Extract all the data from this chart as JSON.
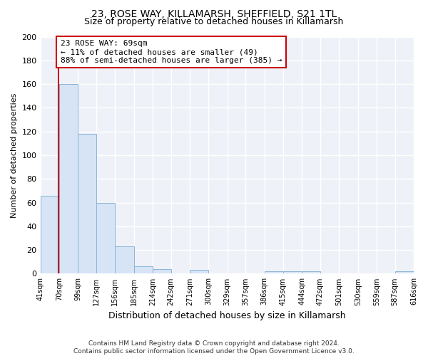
{
  "title": "23, ROSE WAY, KILLAMARSH, SHEFFIELD, S21 1TL",
  "subtitle": "Size of property relative to detached houses in Killamarsh",
  "xlabel": "Distribution of detached houses by size in Killamarsh",
  "ylabel": "Number of detached properties",
  "bins": [
    41,
    70,
    99,
    127,
    156,
    185,
    214,
    242,
    271,
    300,
    329,
    357,
    386,
    415,
    444,
    472,
    501,
    530,
    559,
    587,
    616
  ],
  "counts": [
    66,
    160,
    118,
    60,
    23,
    6,
    4,
    0,
    3,
    0,
    0,
    0,
    2,
    2,
    2,
    0,
    0,
    0,
    0,
    2
  ],
  "bar_color": "#d6e4f5",
  "bar_edge_color": "#8ab4d8",
  "property_size": 69,
  "property_line_color": "#cc0000",
  "annotation_line1": "23 ROSE WAY: 69sqm",
  "annotation_line2": "← 11% of detached houses are smaller (49)",
  "annotation_line3": "88% of semi-detached houses are larger (385) →",
  "annotation_box_color": "#ffffff",
  "annotation_box_edge_color": "#cc0000",
  "ylim": [
    0,
    200
  ],
  "yticks": [
    0,
    20,
    40,
    60,
    80,
    100,
    120,
    140,
    160,
    180,
    200
  ],
  "tick_labels": [
    "41sqm",
    "70sqm",
    "99sqm",
    "127sqm",
    "156sqm",
    "185sqm",
    "214sqm",
    "242sqm",
    "271sqm",
    "300sqm",
    "329sqm",
    "357sqm",
    "386sqm",
    "415sqm",
    "444sqm",
    "472sqm",
    "501sqm",
    "530sqm",
    "559sqm",
    "587sqm",
    "616sqm"
  ],
  "footer_text": "Contains HM Land Registry data © Crown copyright and database right 2024.\nContains public sector information licensed under the Open Government Licence v3.0.",
  "background_color": "#ffffff",
  "plot_bg_color": "#eef2f8",
  "grid_color": "#ffffff",
  "title_fontsize": 10,
  "subtitle_fontsize": 9
}
